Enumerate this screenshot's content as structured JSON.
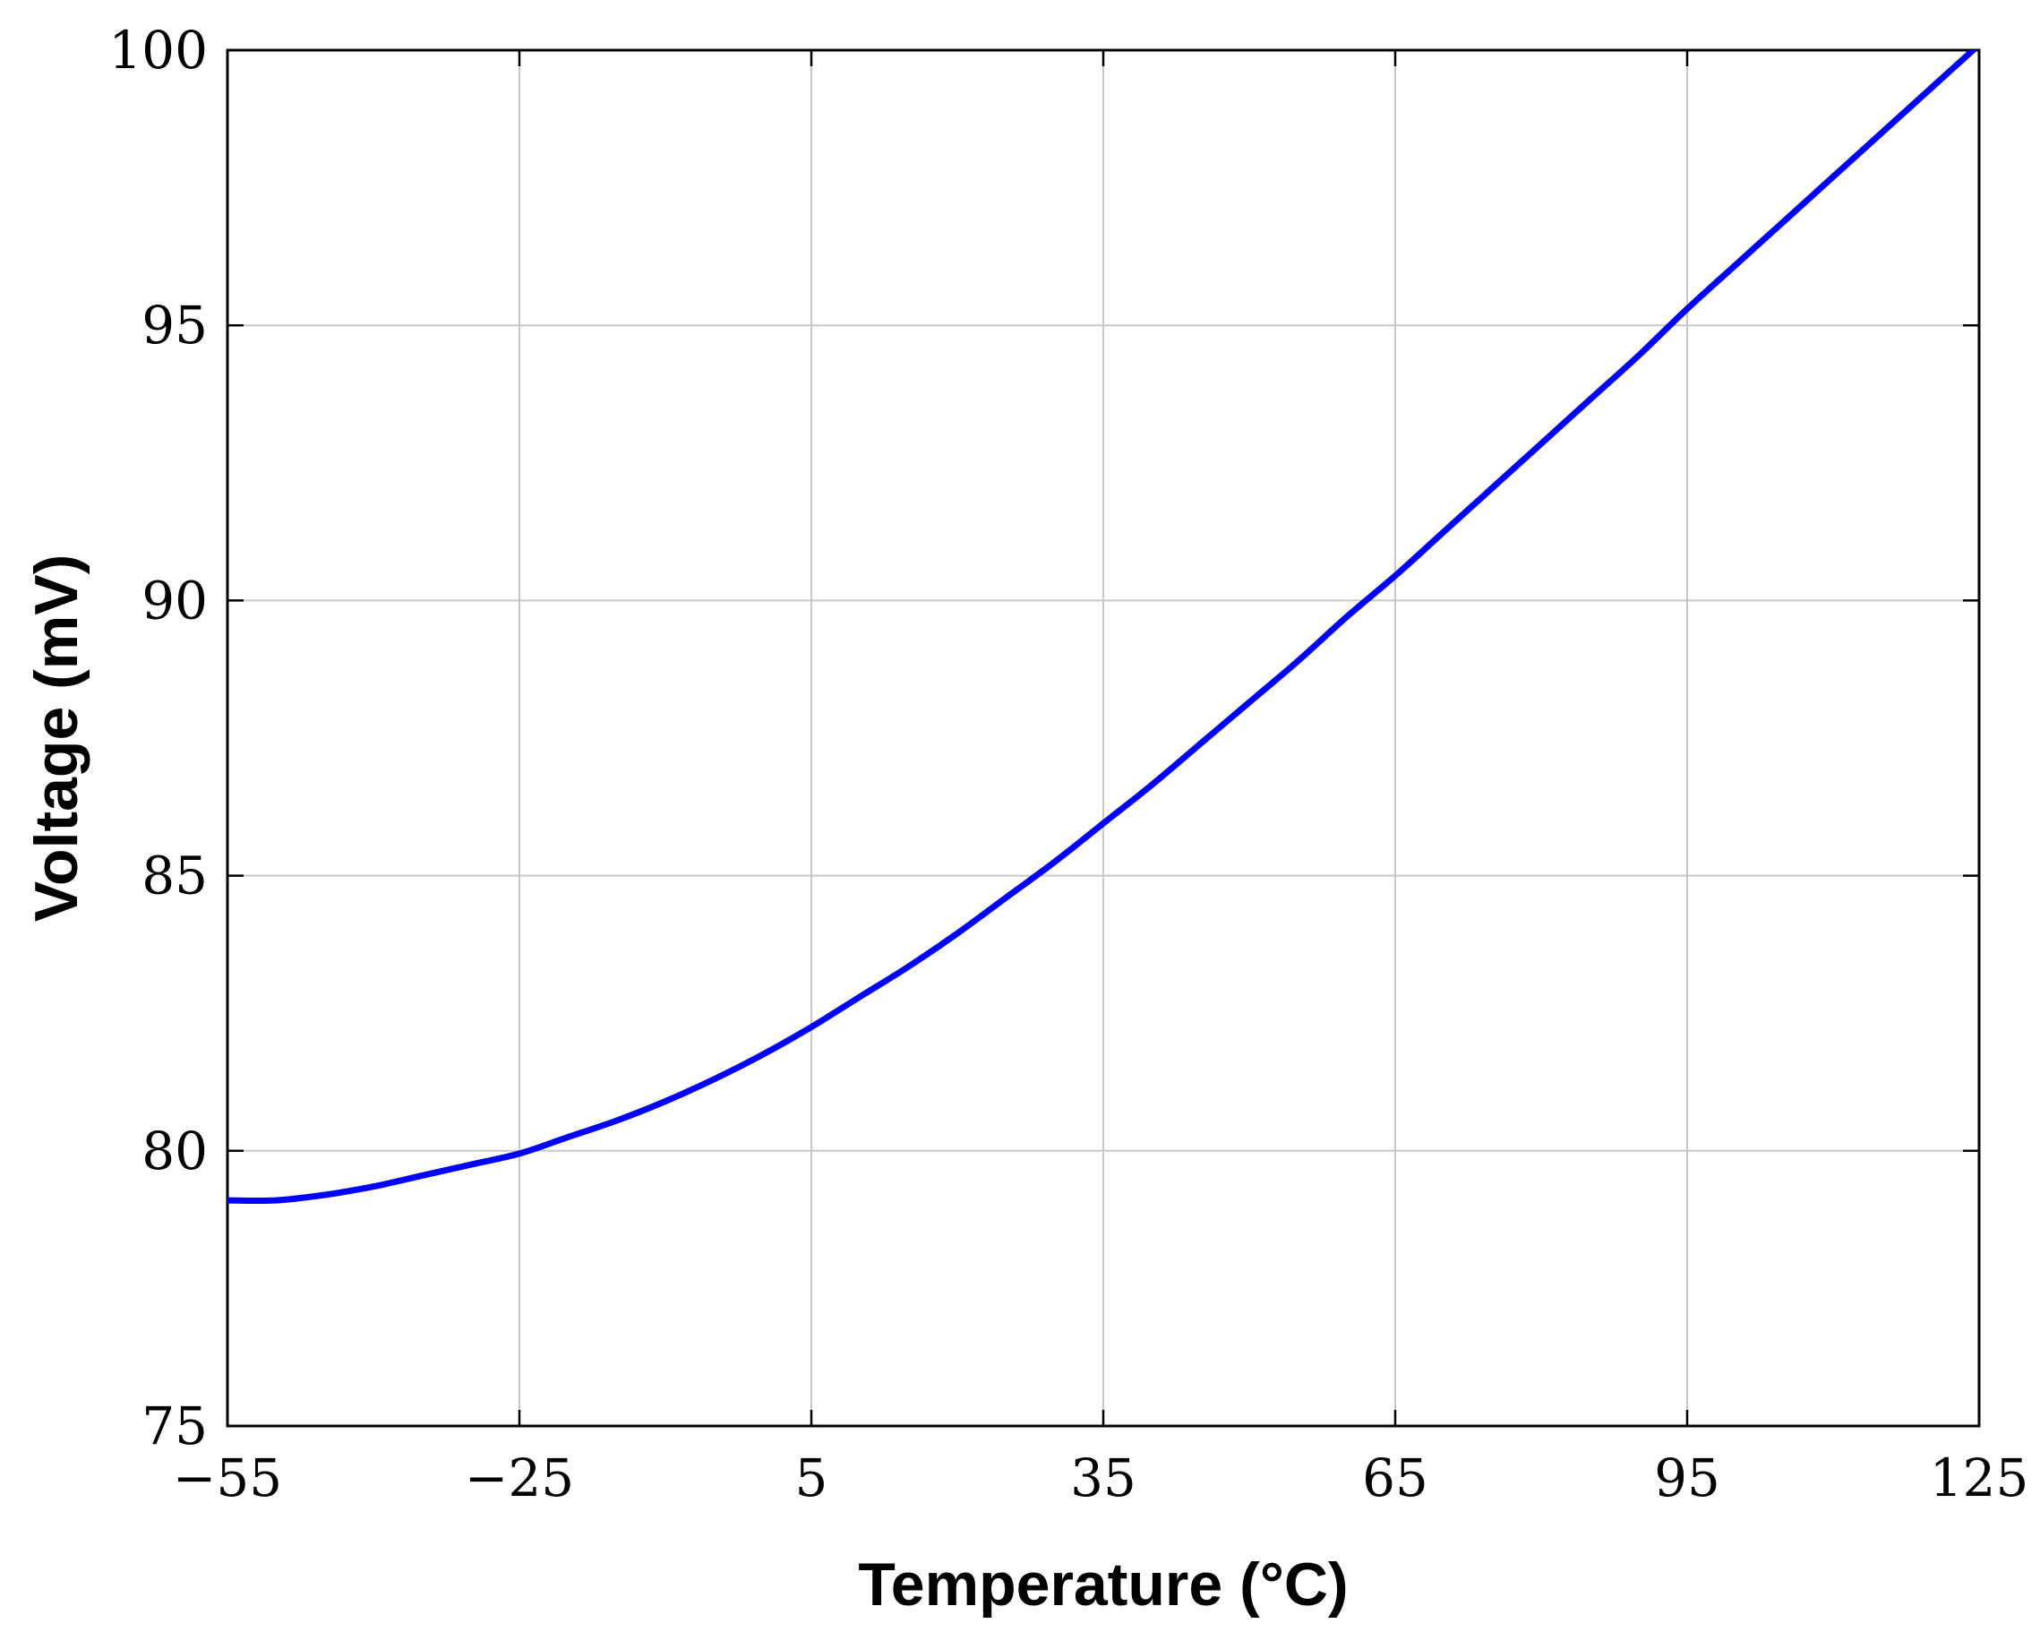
{
  "chart_data": {
    "type": "line",
    "title": "",
    "xlabel": "Temperature (°C)",
    "ylabel": "Voltage (mV)",
    "xlim": [
      -55,
      125
    ],
    "ylim": [
      75,
      100
    ],
    "xticks": [
      -55,
      -25,
      5,
      35,
      65,
      95,
      125
    ],
    "xtick_labels": [
      "−55",
      "−25",
      "5",
      "35",
      "65",
      "95",
      "125"
    ],
    "yticks": [
      75,
      80,
      85,
      90,
      95,
      100
    ],
    "ytick_labels": [
      "75",
      "80",
      "85",
      "90",
      "95",
      "100"
    ],
    "grid": true,
    "series": [
      {
        "color": "#0000ff",
        "x": [
          -55,
          -50,
          -45,
          -40,
          -35,
          -30,
          -25,
          -20,
          -15,
          -10,
          -5,
          0,
          5,
          10,
          15,
          20,
          25,
          30,
          35,
          40,
          45,
          50,
          55,
          60,
          65,
          70,
          75,
          80,
          85,
          90,
          95,
          100,
          105,
          110,
          115,
          120,
          125
        ],
        "y": [
          79.1,
          79.1,
          79.2,
          79.35,
          79.55,
          79.75,
          79.95,
          80.25,
          80.55,
          80.9,
          81.3,
          81.75,
          82.25,
          82.8,
          83.35,
          83.95,
          84.6,
          85.25,
          85.95,
          86.65,
          87.4,
          88.15,
          88.9,
          89.7,
          90.45,
          91.25,
          92.05,
          92.85,
          93.65,
          94.45,
          95.3,
          96.1,
          96.9,
          97.7,
          98.5,
          99.3,
          100.1
        ]
      }
    ]
  }
}
